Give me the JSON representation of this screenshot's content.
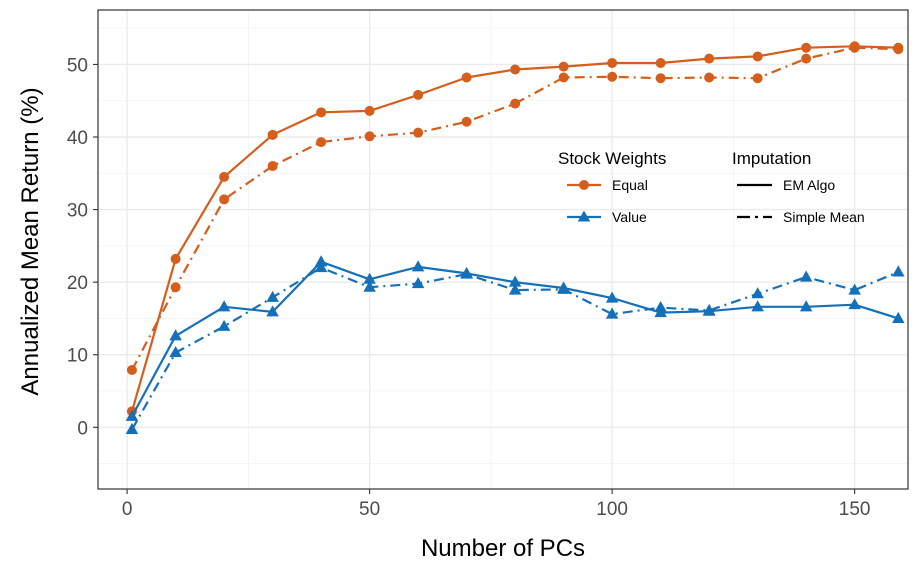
{
  "chart_data": {
    "type": "line",
    "xlabel": "Number of PCs",
    "ylabel": "Annualized Mean Return (%)",
    "xlim": [
      -6,
      161
    ],
    "ylim": [
      -8.5,
      57.5
    ],
    "x_ticks": [
      0,
      50,
      100,
      150
    ],
    "x_tick_labels": [
      "0",
      "50",
      "100",
      "150"
    ],
    "y_ticks": [
      0,
      10,
      20,
      30,
      40,
      50
    ],
    "y_tick_labels": [
      "0",
      "10",
      "20",
      "30",
      "40",
      "50"
    ],
    "grid": true,
    "x": [
      1,
      10,
      20,
      30,
      40,
      50,
      60,
      70,
      80,
      90,
      100,
      110,
      120,
      130,
      140,
      150,
      159
    ],
    "series": [
      {
        "weight": "Equal",
        "imputation": "EM Algo",
        "color": "#d55e1c",
        "marker": "circle",
        "dash": "solid",
        "values": [
          2.2,
          23.2,
          34.5,
          40.3,
          43.4,
          43.6,
          45.8,
          48.2,
          49.3,
          49.7,
          50.2,
          50.2,
          50.8,
          51.1,
          52.3,
          52.5,
          52.3
        ]
      },
      {
        "weight": "Equal",
        "imputation": "Simple Mean",
        "color": "#d55e1c",
        "marker": "circle",
        "dash": "dashdot",
        "values": [
          7.9,
          19.3,
          31.4,
          36.0,
          39.3,
          40.1,
          40.6,
          42.1,
          44.6,
          48.2,
          48.3,
          48.1,
          48.2,
          48.1,
          50.8,
          52.3,
          52.1
        ]
      },
      {
        "weight": "Value",
        "imputation": "EM Algo",
        "color": "#1470b8",
        "marker": "triangle",
        "dash": "solid",
        "values": [
          1.5,
          12.6,
          16.6,
          15.9,
          22.8,
          20.4,
          22.1,
          21.2,
          20.0,
          19.2,
          17.8,
          15.8,
          16.0,
          16.6,
          16.6,
          16.9,
          15.0
        ]
      },
      {
        "weight": "Value",
        "imputation": "Simple Mean",
        "color": "#1470b8",
        "marker": "triangle",
        "dash": "dashdot",
        "values": [
          -0.3,
          10.3,
          13.9,
          17.9,
          22.0,
          19.3,
          19.8,
          21.1,
          18.9,
          19.0,
          15.6,
          16.5,
          16.1,
          18.4,
          20.7,
          18.9,
          21.4
        ]
      }
    ],
    "legend": {
      "placement": "right",
      "weights": {
        "title": "Stock Weights",
        "items": [
          {
            "label": "Equal",
            "color": "#d55e1c",
            "marker": "circle"
          },
          {
            "label": "Value",
            "color": "#1470b8",
            "marker": "triangle"
          }
        ]
      },
      "imputation": {
        "title": "Imputation",
        "items": [
          {
            "label": "EM Algo",
            "dash": "solid"
          },
          {
            "label": "Simple Mean",
            "dash": "dashdot"
          }
        ]
      }
    }
  }
}
